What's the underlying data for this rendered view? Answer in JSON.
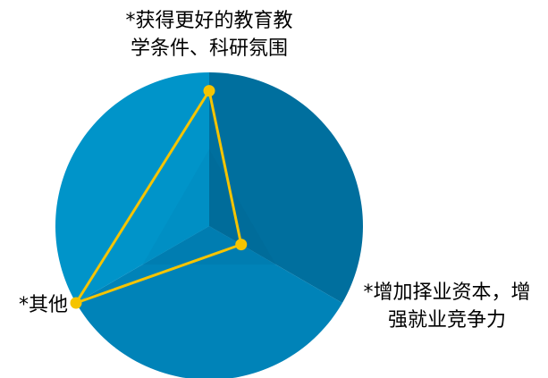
{
  "chart_data": {
    "type": "radar",
    "axes": [
      {
        "label_lines": [
          "*获得更好的教育教",
          "学条件、科研氛围"
        ]
      },
      {
        "label_lines": [
          "*增加择业资本，增",
          "强就业竞争力"
        ]
      },
      {
        "label_lines": [
          "*其他"
        ]
      }
    ],
    "series": [
      {
        "values": [
          0.88,
          0.24,
          1.0
        ]
      }
    ],
    "range": [
      0,
      1
    ],
    "sector_colors": [
      "#006f9e",
      "#0083b8",
      "#0094c9"
    ],
    "shade_colors": [
      "#006a97",
      "#0079ab",
      "#008bbf"
    ],
    "line_color": "#f5c400"
  }
}
